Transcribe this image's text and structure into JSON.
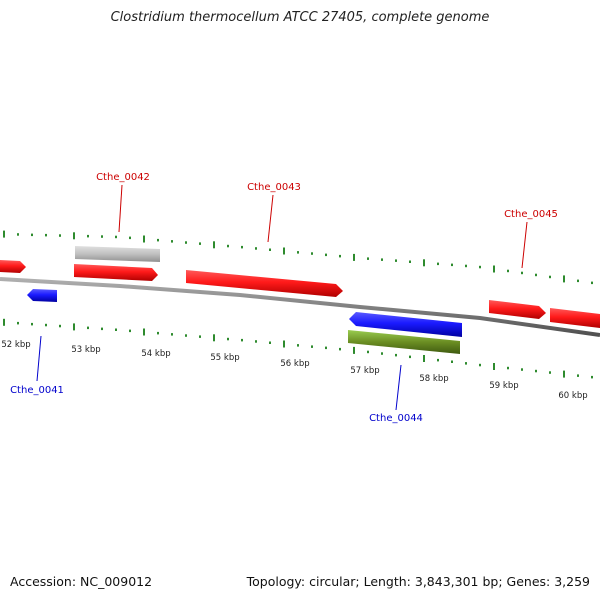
{
  "title": "Clostridium thermocellum ATCC 27405, complete genome",
  "footer": {
    "accession": "Accession: NC_009012",
    "summary": "Topology: circular; Length: 3,843,301 bp; Genes: 3,259"
  },
  "colors": {
    "forward_gene": "#ff1a1a",
    "reverse_gene": "#1a1aff",
    "pseudo_gene": "#c0c0c0",
    "rna_gene": "#6b8e23",
    "backbone": "#808080",
    "tick": "#2e8b2e",
    "forward_label": "#cc0000",
    "reverse_label": "#0000cc"
  },
  "kbp_labels": [
    "52 kbp",
    "53 kbp",
    "54 kbp",
    "55 kbp",
    "56 kbp",
    "57 kbp",
    "58 kbp",
    "59 kbp",
    "60 kbp"
  ],
  "gene_labels": {
    "cthe_0041": "Cthe_0041",
    "cthe_0042": "Cthe_0042",
    "cthe_0043": "Cthe_0043",
    "cthe_0044": "Cthe_0044",
    "cthe_0045": "Cthe_0045"
  }
}
